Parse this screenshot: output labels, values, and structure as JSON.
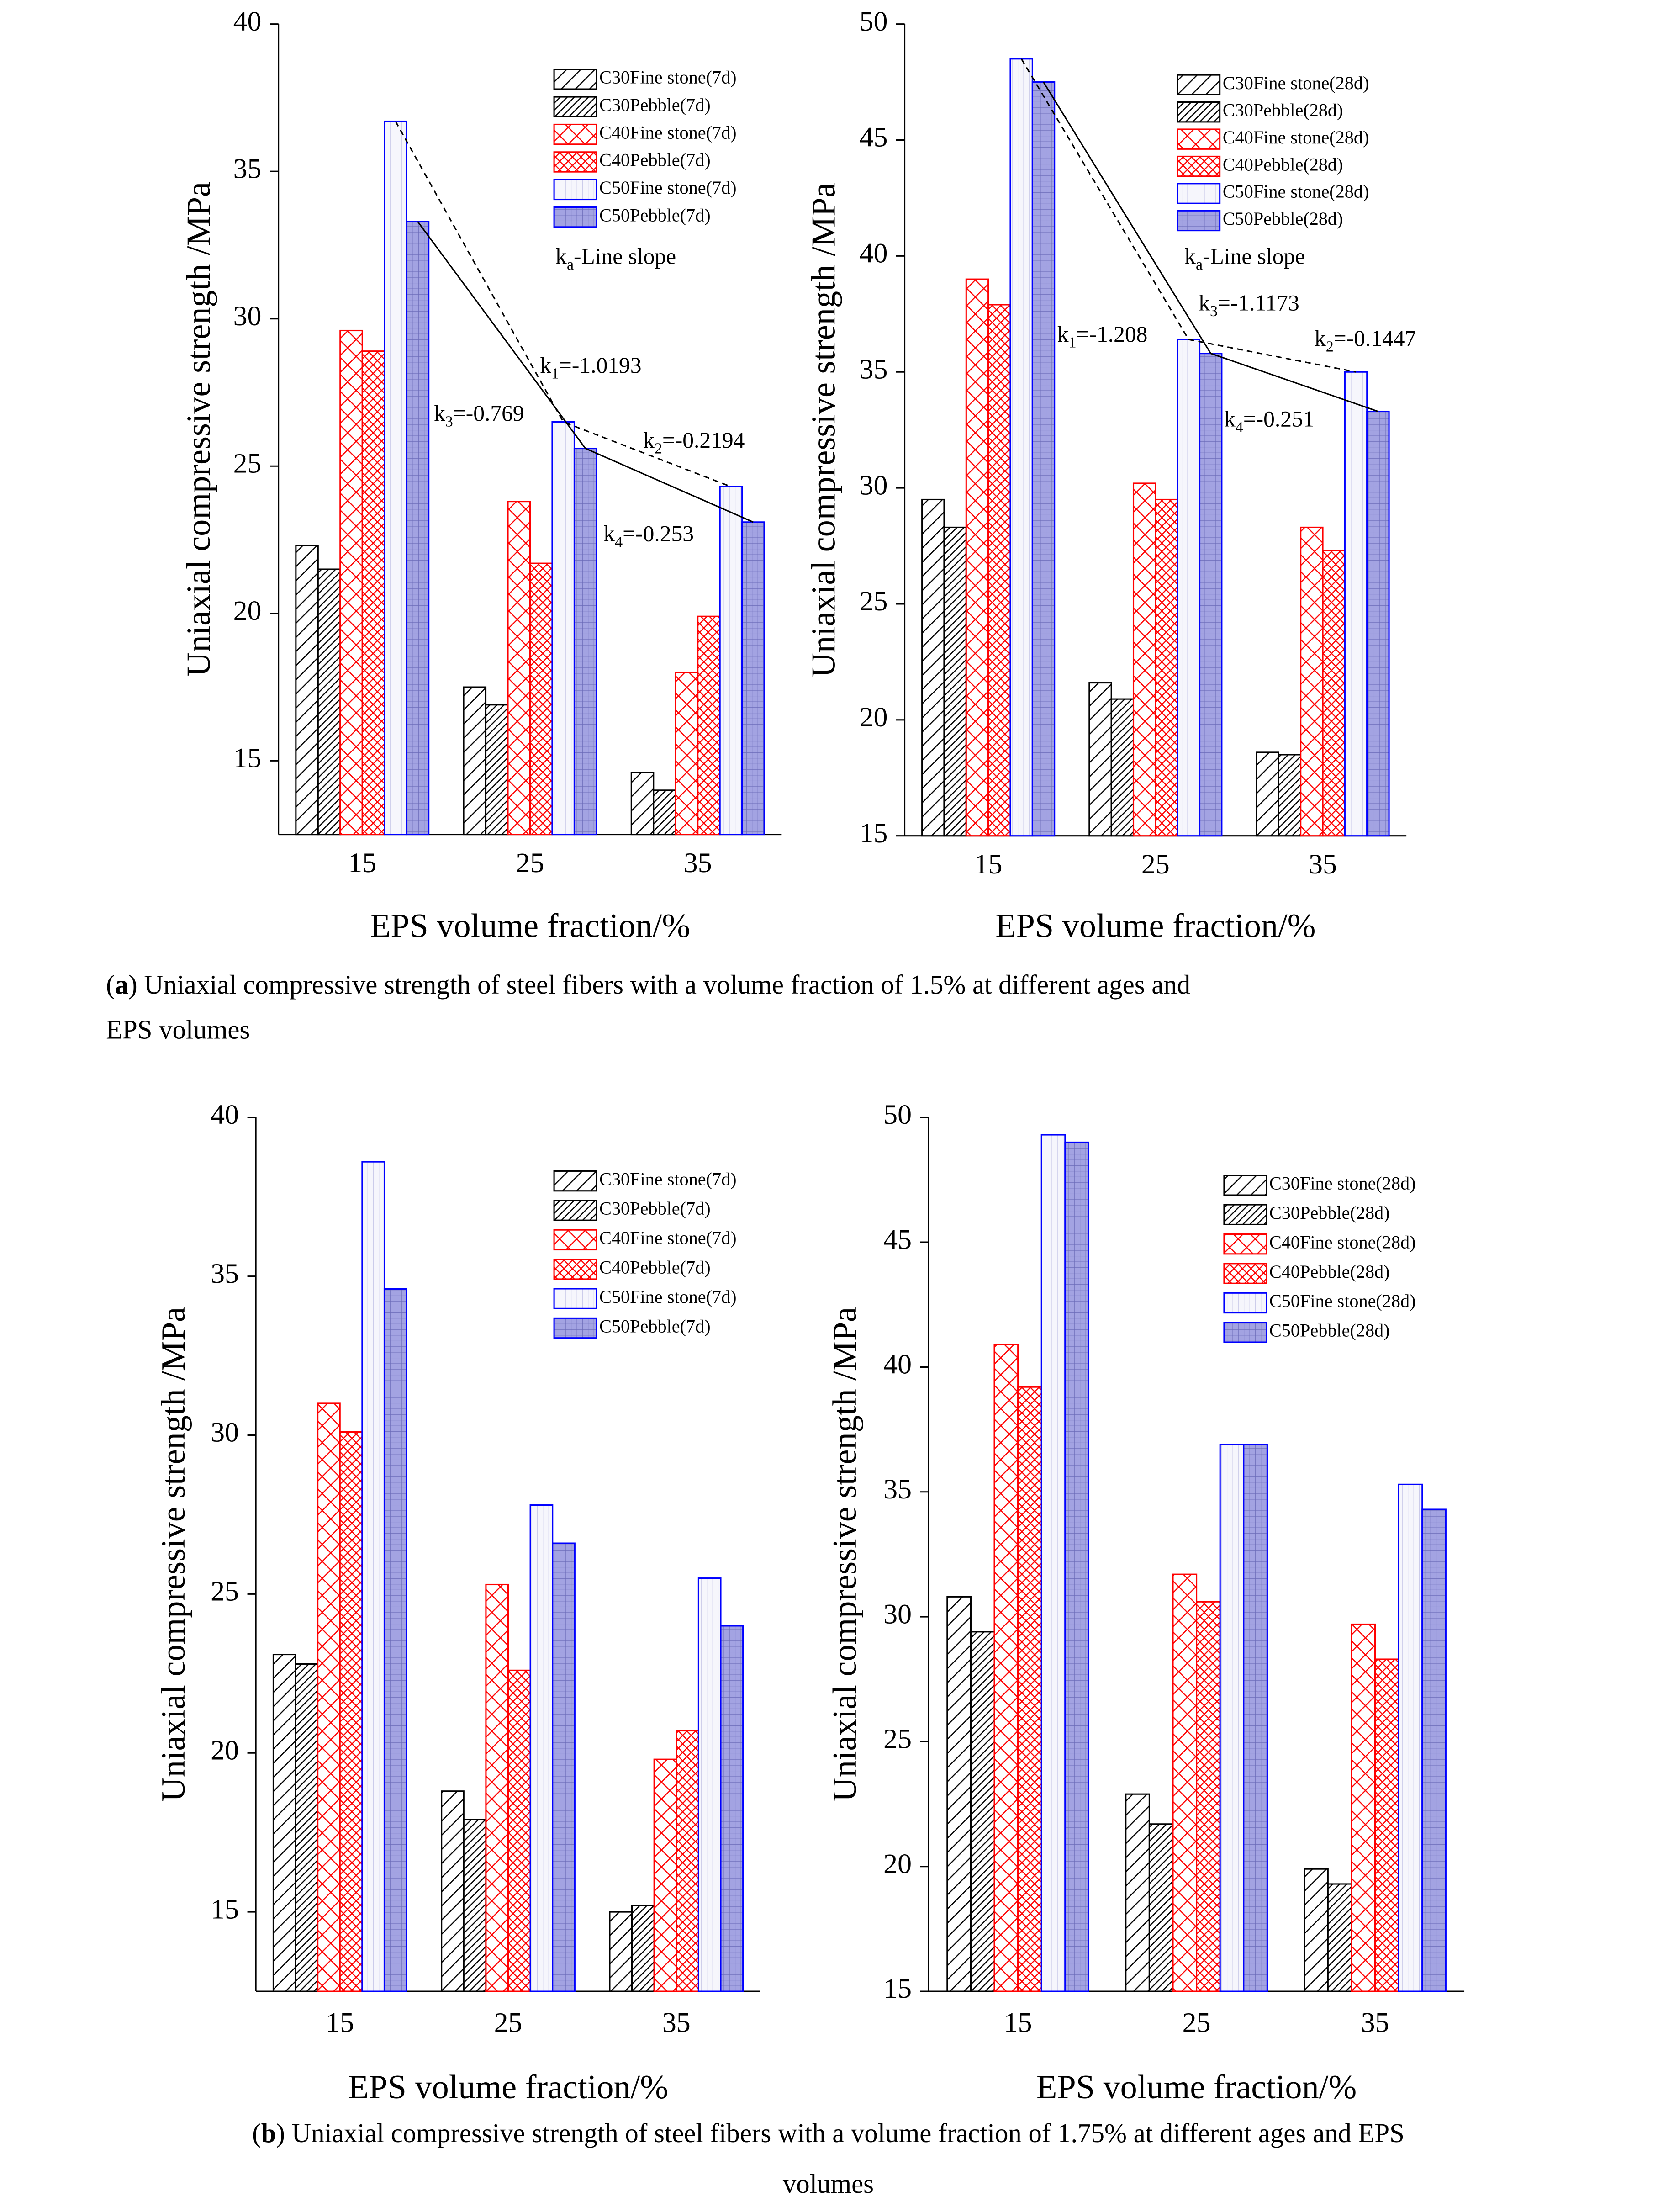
{
  "chart_data": [
    {
      "type": "bar",
      "categories": [
        "15",
        "25",
        "35"
      ],
      "series": [
        {
          "name": "C30Fine stone(7d)",
          "color": "#000000",
          "hatch": "/",
          "values": [
            22.3,
            17.5,
            14.6
          ]
        },
        {
          "name": "C30Pebble(7d)",
          "color": "#000000",
          "hatch": "//",
          "values": [
            21.5,
            16.9,
            14.0
          ]
        },
        {
          "name": "C40Fine stone(7d)",
          "color": "#ff0000",
          "hatch": "x",
          "values": [
            29.6,
            23.8,
            18.0
          ]
        },
        {
          "name": "C40Pebble(7d)",
          "color": "#ff0000",
          "hatch": "xx",
          "values": [
            28.9,
            21.7,
            19.9
          ]
        },
        {
          "name": "C50Fine stone(7d)",
          "color": "#0000ff",
          "hatch": "|",
          "fill": "#f6f6fc",
          "values": [
            36.7,
            26.5,
            24.3
          ]
        },
        {
          "name": "C50Pebble(7d)",
          "color": "#0000ff",
          "hatch": "+",
          "fill": "#a3a3e2",
          "values": [
            33.3,
            25.6,
            23.1
          ]
        }
      ],
      "ylim": [
        12.5,
        40
      ],
      "yticks": [
        15,
        20,
        25,
        30,
        35,
        40
      ],
      "xlabel": "EPS volume fraction/%",
      "ylabel": "Uniaxial compressive strength /MPa",
      "legend": "upper right",
      "trend_lines": true,
      "annotations": [
        {
          "base": "k",
          "sub": "a",
          "text": "-Line slope"
        },
        {
          "base": "k",
          "sub": "1",
          "text": "=-1.0193"
        },
        {
          "base": "k",
          "sub": "3",
          "text": "=-0.769"
        },
        {
          "base": "k",
          "sub": "2",
          "text": "=-0.2194"
        },
        {
          "base": "k",
          "sub": "4",
          "text": "=-0.253"
        }
      ]
    },
    {
      "type": "bar",
      "categories": [
        "15",
        "25",
        "35"
      ],
      "series": [
        {
          "name": "C30Fine stone(28d)",
          "color": "#000000",
          "hatch": "/",
          "values": [
            29.5,
            21.6,
            18.6
          ]
        },
        {
          "name": "C30Pebble(28d)",
          "color": "#000000",
          "hatch": "//",
          "values": [
            28.3,
            20.9,
            18.5
          ]
        },
        {
          "name": "C40Fine stone(28d)",
          "color": "#ff0000",
          "hatch": "x",
          "values": [
            39.0,
            30.2,
            28.3
          ]
        },
        {
          "name": "C40Pebble(28d)",
          "color": "#ff0000",
          "hatch": "xx",
          "values": [
            37.9,
            29.5,
            27.3
          ]
        },
        {
          "name": "C50Fine stone(28d)",
          "color": "#0000ff",
          "hatch": "|",
          "fill": "#f6f6fc",
          "values": [
            48.5,
            36.4,
            35.0
          ]
        },
        {
          "name": "C50Pebble(28d)",
          "color": "#0000ff",
          "hatch": "+",
          "fill": "#a3a3e2",
          "values": [
            47.5,
            35.8,
            33.3
          ]
        }
      ],
      "ylim": [
        15,
        50
      ],
      "yticks": [
        15,
        20,
        25,
        30,
        35,
        40,
        45,
        50
      ],
      "xlabel": "EPS volume fraction/%",
      "ylabel": "Uniaxial compressive strength /MPa",
      "legend": "upper right",
      "trend_lines": true,
      "annotations": [
        {
          "base": "k",
          "sub": "a",
          "text": "-Line slope"
        },
        {
          "base": "k",
          "sub": "1",
          "text": "=-1.208"
        },
        {
          "base": "k",
          "sub": "3",
          "text": "=-1.1173"
        },
        {
          "base": "k",
          "sub": "2",
          "text": "=-0.1447"
        },
        {
          "base": "k",
          "sub": "4",
          "text": "=-0.251"
        }
      ]
    },
    {
      "type": "bar",
      "categories": [
        "15",
        "25",
        "35"
      ],
      "series": [
        {
          "name": "C30Fine stone(7d)",
          "color": "#000000",
          "hatch": "/",
          "values": [
            23.1,
            18.8,
            15.0
          ]
        },
        {
          "name": "C30Pebble(7d)",
          "color": "#000000",
          "hatch": "//",
          "values": [
            22.8,
            17.9,
            15.2
          ]
        },
        {
          "name": "C40Fine stone(7d)",
          "color": "#ff0000",
          "hatch": "x",
          "values": [
            31.0,
            25.3,
            19.8
          ]
        },
        {
          "name": "C40Pebble(7d)",
          "color": "#ff0000",
          "hatch": "xx",
          "values": [
            30.1,
            22.6,
            20.7
          ]
        },
        {
          "name": "C50Fine stone(7d)",
          "color": "#0000ff",
          "hatch": "|",
          "fill": "#f6f6fc",
          "values": [
            38.6,
            27.8,
            25.5
          ]
        },
        {
          "name": "C50Pebble(7d)",
          "color": "#0000ff",
          "hatch": "+",
          "fill": "#a3a3e2",
          "values": [
            34.6,
            26.6,
            24.0
          ]
        }
      ],
      "ylim": [
        12.5,
        40
      ],
      "yticks": [
        15,
        20,
        25,
        30,
        35,
        40
      ],
      "xlabel": "EPS volume fraction/%",
      "ylabel": "Uniaxial compressive strength /MPa",
      "legend": "upper right",
      "trend_lines": false
    },
    {
      "type": "bar",
      "categories": [
        "15",
        "25",
        "35"
      ],
      "series": [
        {
          "name": "C30Fine stone(28d)",
          "color": "#000000",
          "hatch": "/",
          "values": [
            30.8,
            22.9,
            19.9
          ]
        },
        {
          "name": "C30Pebble(28d)",
          "color": "#000000",
          "hatch": "//",
          "values": [
            29.4,
            21.7,
            19.3
          ]
        },
        {
          "name": "C40Fine stone(28d)",
          "color": "#ff0000",
          "hatch": "x",
          "values": [
            40.9,
            31.7,
            29.7
          ]
        },
        {
          "name": "C40Pebble(28d)",
          "color": "#ff0000",
          "hatch": "xx",
          "values": [
            39.2,
            30.6,
            28.3
          ]
        },
        {
          "name": "C50Fine stone(28d)",
          "color": "#0000ff",
          "hatch": "|",
          "fill": "#f6f6fc",
          "values": [
            49.3,
            36.9,
            35.3
          ]
        },
        {
          "name": "C50Pebble(28d)",
          "color": "#0000ff",
          "hatch": "+",
          "fill": "#a3a3e2",
          "values": [
            49.0,
            36.9,
            34.3
          ]
        }
      ],
      "ylim": [
        15,
        50
      ],
      "yticks": [
        15,
        20,
        25,
        30,
        35,
        40,
        45,
        50
      ],
      "xlabel": "EPS volume fraction/%",
      "ylabel": "Uniaxial compressive strength /MPa",
      "legend": "upper right",
      "trend_lines": false
    }
  ],
  "captions": [
    {
      "open": "(",
      "label": "a",
      "lines": [
        ") Uniaxial compressive strength of steel fibers with a volume fraction of 1.5% at different ages and",
        "EPS volumes"
      ]
    },
    {
      "open": "(",
      "label": "b",
      "lines": [
        ") Uniaxial compressive strength of steel fibers with a volume fraction of 1.75% at different ages and EPS",
        "volumes"
      ]
    }
  ]
}
